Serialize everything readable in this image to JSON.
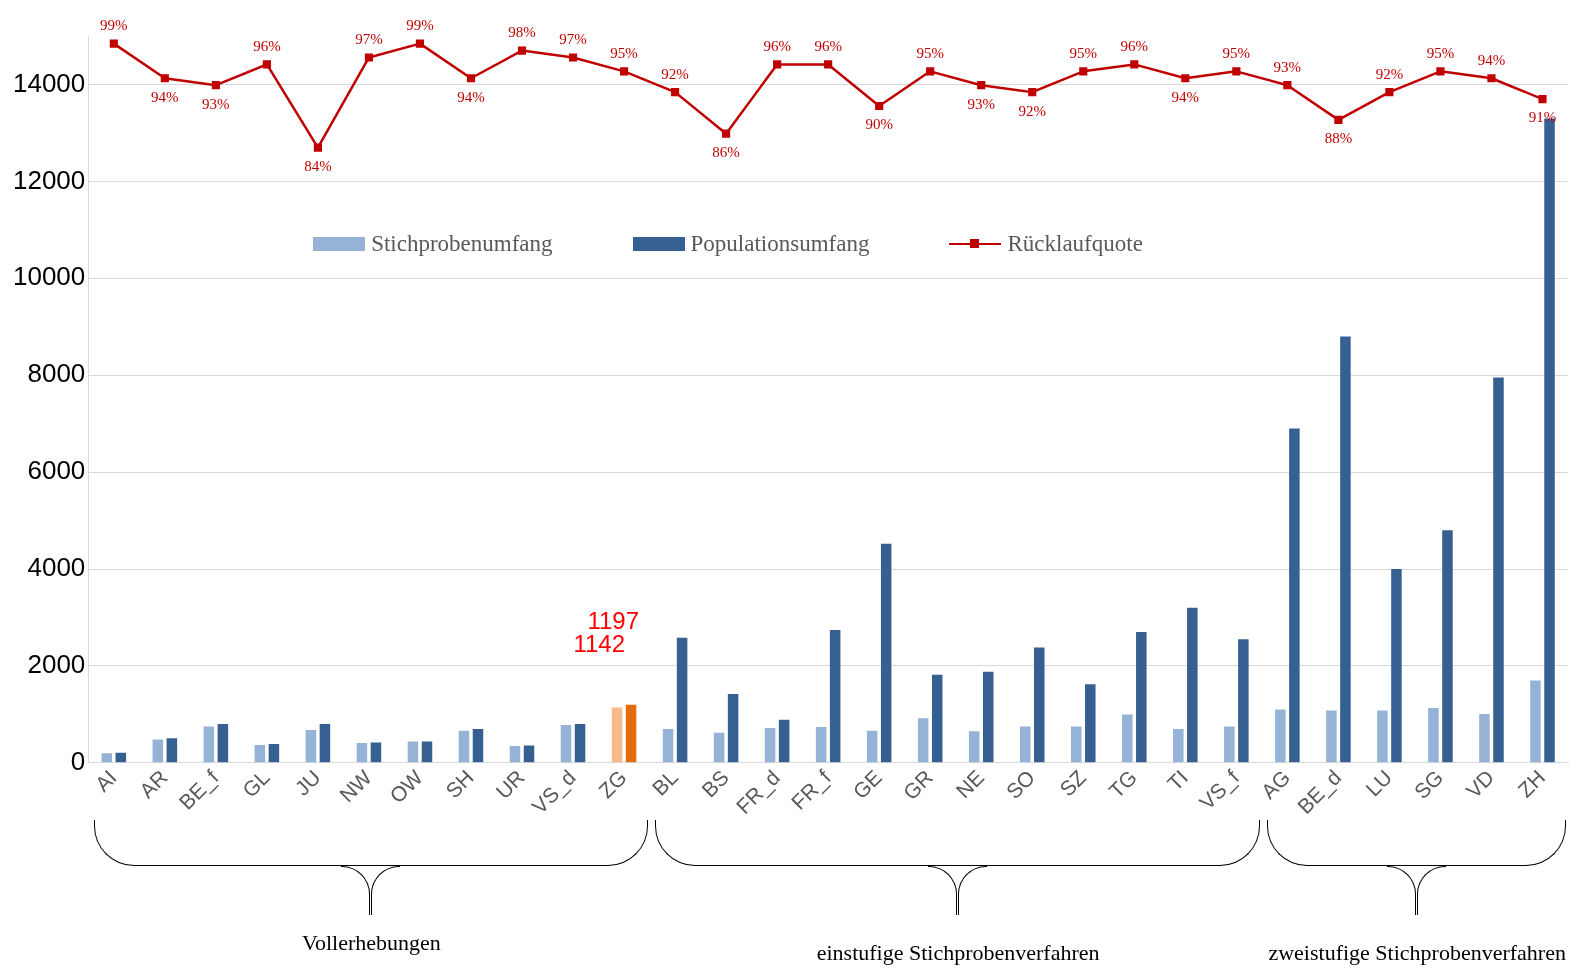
{
  "chart_data": {
    "type": "bar",
    "categories": [
      "AI",
      "AR",
      "BE_f",
      "GL",
      "JU",
      "NW",
      "OW",
      "SH",
      "UR",
      "VS_d",
      "ZG",
      "BL",
      "BS",
      "FR_d",
      "FR_f",
      "GE",
      "GR",
      "NE",
      "SO",
      "SZ",
      "TG",
      "TI",
      "VS_f",
      "AG",
      "BE_d",
      "LU",
      "SG",
      "VD",
      "ZH"
    ],
    "series": [
      {
        "name": "Stichprobenumfang",
        "color": "#95b3d7",
        "colors": [
          "#95b3d7",
          "#95b3d7",
          "#95b3d7",
          "#95b3d7",
          "#95b3d7",
          "#95b3d7",
          "#95b3d7",
          "#95b3d7",
          "#95b3d7",
          "#95b3d7",
          "#fab98a",
          "#95b3d7",
          "#95b3d7",
          "#95b3d7",
          "#95b3d7",
          "#95b3d7",
          "#95b3d7",
          "#95b3d7",
          "#95b3d7",
          "#95b3d7",
          "#95b3d7",
          "#95b3d7",
          "#95b3d7",
          "#95b3d7",
          "#95b3d7",
          "#95b3d7",
          "#95b3d7",
          "#95b3d7",
          "#95b3d7"
        ],
        "values": [
          200,
          480,
          750,
          370,
          680,
          410,
          440,
          660,
          350,
          780,
          1142,
          700,
          620,
          720,
          740,
          660,
          920,
          650,
          750,
          750,
          1000,
          700,
          750,
          1100,
          1080,
          1080,
          1130,
          1010,
          1700
        ],
        "value_labels": [
          null,
          null,
          null,
          null,
          null,
          null,
          null,
          null,
          null,
          null,
          "1142",
          null,
          null,
          null,
          null,
          null,
          null,
          null,
          null,
          null,
          null,
          null,
          null,
          null,
          null,
          null,
          null,
          null,
          null
        ]
      },
      {
        "name": "Populationsumfang",
        "color": "#376092",
        "colors": [
          "#376092",
          "#376092",
          "#376092",
          "#376092",
          "#376092",
          "#376092",
          "#376092",
          "#376092",
          "#376092",
          "#376092",
          "#e46c0a",
          "#376092",
          "#376092",
          "#376092",
          "#376092",
          "#376092",
          "#376092",
          "#376092",
          "#376092",
          "#376092",
          "#376092",
          "#376092",
          "#376092",
          "#376092",
          "#376092",
          "#376092",
          "#376092",
          "#376092",
          "#376092"
        ],
        "values": [
          210,
          510,
          800,
          390,
          800,
          420,
          440,
          700,
          360,
          800,
          1197,
          2580,
          1420,
          890,
          2740,
          4520,
          1820,
          1880,
          2380,
          1620,
          2700,
          3200,
          2550,
          6900,
          8800,
          4000,
          4800,
          7950,
          13300
        ],
        "value_labels": [
          null,
          null,
          null,
          null,
          null,
          null,
          null,
          null,
          null,
          null,
          "1197",
          null,
          null,
          null,
          null,
          null,
          null,
          null,
          null,
          null,
          null,
          null,
          null,
          null,
          null,
          null,
          null,
          null,
          null
        ]
      },
      {
        "name": "Rücklaufquote",
        "type": "line",
        "axis": "y2",
        "color": "#c00000",
        "marker": "square",
        "values": [
          99,
          94,
          93,
          96,
          84,
          97,
          99,
          94,
          98,
          97,
          95,
          92,
          86,
          96,
          96,
          90,
          95,
          93,
          92,
          95,
          96,
          94,
          95,
          93,
          88,
          92,
          95,
          94,
          91
        ],
        "value_labels": [
          "99%",
          "94%",
          "93%",
          "96%",
          "84%",
          "97%",
          "99%",
          "94%",
          "98%",
          "97%",
          "95%",
          "92%",
          "86%",
          "96%",
          "96%",
          "90%",
          "95%",
          "93%",
          "92%",
          "95%",
          "96%",
          "94%",
          "95%",
          "93%",
          "88%",
          "92%",
          "95%",
          "94%",
          "91%"
        ]
      }
    ],
    "ylim": [
      0,
      15000
    ],
    "yticks": [
      0,
      2000,
      4000,
      6000,
      8000,
      10000,
      12000,
      14000
    ],
    "y2lim": [
      -4.8,
      100.1
    ],
    "grid": "y",
    "legend": "top",
    "line_style": "solid",
    "annotations": [
      "Vollerhebungen",
      "einstufige Stichprobenverfahren",
      "zweistufige Stichprobenverfahren"
    ]
  }
}
